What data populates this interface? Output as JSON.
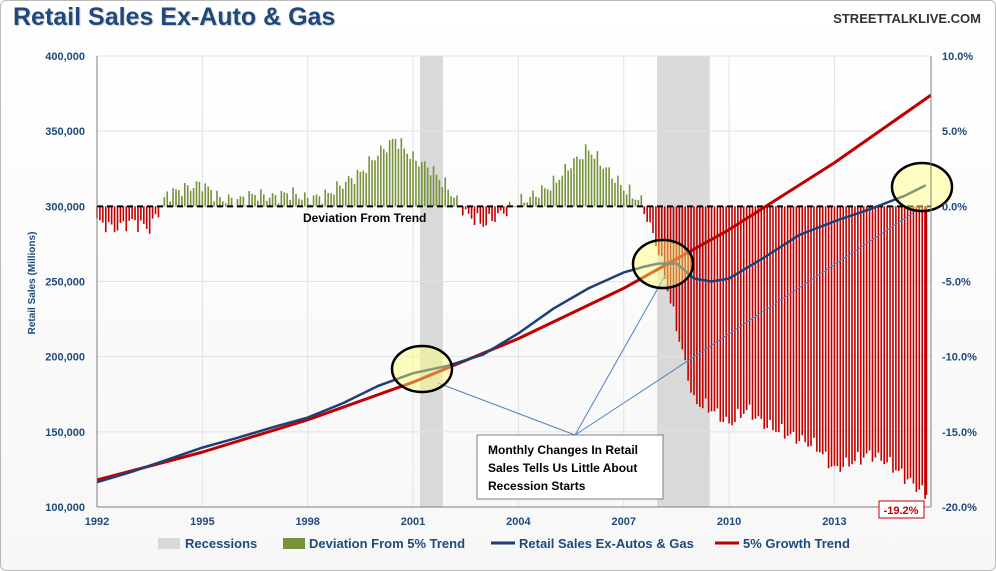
{
  "header": {
    "title": "Retail Sales Ex-Auto & Gas",
    "source": "STREETTALKLIVE.COM"
  },
  "chart_data": {
    "type": "line",
    "title": "Retail Sales Ex-Auto & Gas",
    "ylabel": "Retail Sales (Millions)",
    "xlim": [
      1992,
      2015.75
    ],
    "ylim": [
      100000,
      400000
    ],
    "y2lim": [
      -20,
      10
    ],
    "x_ticks": [
      "1992",
      "1995",
      "1998",
      "2001",
      "2004",
      "2007",
      "2010",
      "2013"
    ],
    "y_ticks": [
      "100,000",
      "150,000",
      "200,000",
      "250,000",
      "300,000",
      "350,000",
      "400,000"
    ],
    "y2_ticks": [
      "-20.0%",
      "-15.0%",
      "-10.0%",
      "-5.0%",
      "0.0%",
      "5.0%",
      "10.0%"
    ],
    "grid": true,
    "legend_position": "bottom",
    "recessions": [
      [
        2001.2,
        2001.85
      ],
      [
        2007.95,
        2009.45
      ]
    ],
    "series": [
      {
        "name": "Retail Sales Ex-Autos & Gas",
        "color": "#1f3f77",
        "axis": "left",
        "x": [
          1992,
          1993,
          1994,
          1995,
          1996,
          1997,
          1998,
          1999,
          2000,
          2001,
          2002,
          2003,
          2004,
          2005,
          2006,
          2007,
          2007.6,
          2008,
          2008.5,
          2009,
          2009.5,
          2010,
          2011,
          2012,
          2013,
          2014,
          2015,
          2015.6
        ],
        "values": [
          116500,
          123500,
          131500,
          139500,
          146000,
          153000,
          159500,
          169000,
          180500,
          189000,
          194000,
          201500,
          215500,
          232000,
          245500,
          256000,
          260000,
          262000,
          262000,
          252000,
          250000,
          252000,
          266000,
          281000,
          290000,
          298000,
          307000,
          314000
        ]
      },
      {
        "name": "5% Growth Trend",
        "color": "#c00000",
        "axis": "left",
        "x": [
          1992,
          1995,
          1998,
          2001,
          2004,
          2007,
          2010,
          2013,
          2015.75
        ],
        "values": [
          118000,
          136500,
          158000,
          183000,
          212000,
          245500,
          284500,
          329000,
          374000
        ]
      },
      {
        "name": "Deviation From 5% Trend",
        "type": "bar",
        "axis": "right",
        "color_positive": "#76933c",
        "color_negative": "#c00000",
        "x": [
          1992,
          1992.5,
          1993,
          1993.5,
          1994,
          1994.5,
          1995,
          1995.5,
          1996,
          1996.5,
          1997,
          1997.5,
          1998,
          1998.5,
          1999,
          1999.5,
          2000,
          2000.5,
          2001,
          2001.5,
          2002,
          2002.5,
          2003,
          2003.5,
          2004,
          2004.5,
          2005,
          2005.5,
          2006,
          2006.5,
          2007,
          2007.5,
          2008,
          2008.5,
          2009,
          2009.5,
          2010,
          2010.5,
          2011,
          2011.5,
          2012,
          2012.5,
          2013,
          2013.5,
          2014,
          2014.5,
          2015,
          2015.6
        ],
        "values": [
          -1,
          -1.5,
          -1,
          -1.5,
          0.8,
          1.2,
          1.5,
          0.5,
          0.4,
          0.8,
          0.6,
          0.9,
          0.5,
          0.7,
          1.5,
          2.2,
          3.5,
          4.5,
          3.2,
          2.5,
          1.2,
          -0.5,
          -1.2,
          -0.5,
          0.2,
          0.8,
          1.5,
          2.8,
          3.8,
          2.5,
          1.2,
          0.3,
          -3,
          -8,
          -13,
          -13.5,
          -14.5,
          -13.5,
          -14.5,
          -15,
          -15.5,
          -16,
          -17.5,
          -17,
          -16.5,
          -17,
          -18,
          -19.2
        ]
      }
    ],
    "annotations": [
      "Deviation From Trend",
      "Monthly Changes In Retail Sales Tells Us Little About Recession Starts",
      "-19.2%"
    ]
  },
  "annotations": {
    "deviation_label": "Deviation From Trend",
    "callout_lines": [
      "Monthly Changes In Retail",
      "Sales Tells Us Little About",
      "Recession Starts"
    ],
    "last_value_label": "-19.2%"
  },
  "legend": {
    "items": [
      {
        "label": "Recessions",
        "color": "#d9d9d9"
      },
      {
        "label": "Deviation From 5% Trend",
        "color": "#76933c"
      },
      {
        "label": "Retail Sales Ex-Autos & Gas",
        "color": "#1f3f77"
      },
      {
        "label": "5% Growth Trend",
        "color": "#c00000"
      }
    ]
  }
}
